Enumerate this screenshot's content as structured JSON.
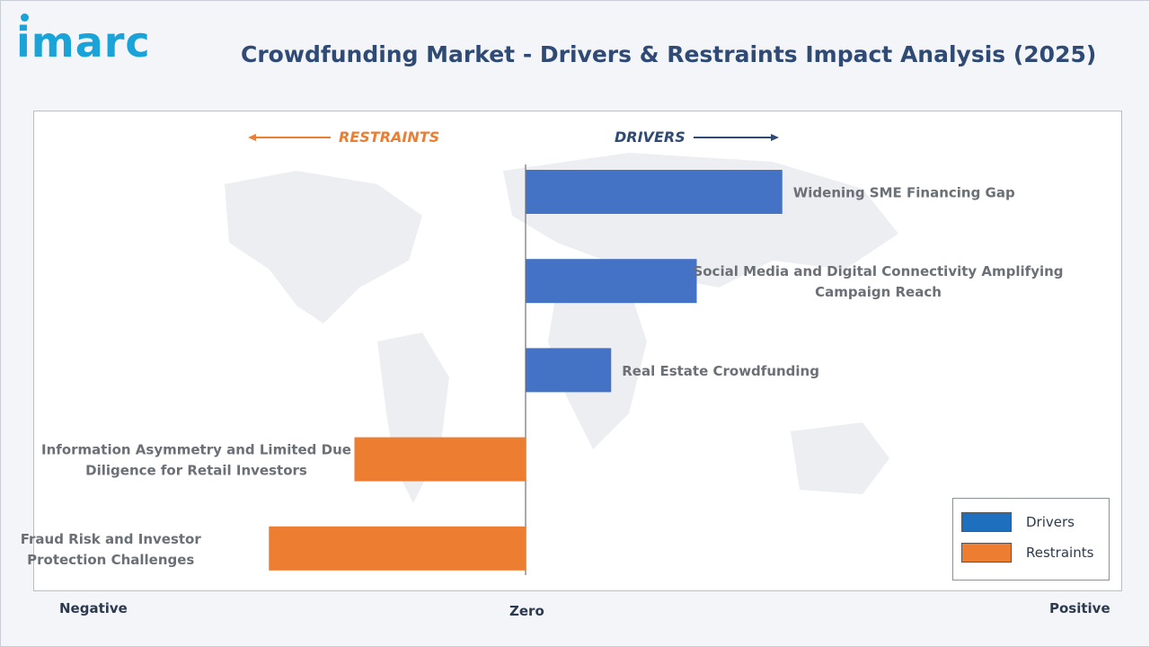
{
  "header": {
    "logo_text": "imarc",
    "title": "Crowdfunding Market - Drivers & Restraints Impact Analysis (2025)"
  },
  "chart_data": {
    "type": "bar",
    "orientation": "horizontal-diverging",
    "direction_labels": {
      "left": "RESTRAINTS",
      "right": "DRIVERS"
    },
    "axis_labels": {
      "negative": "Negative",
      "zero": "Zero",
      "positive": "Positive"
    },
    "xlim": [
      -100,
      100
    ],
    "categories": [
      "Widening SME Financing Gap",
      "Social Media and Digital Connectivity Amplifying Campaign Reach",
      "Real Estate Crowdfunding",
      "Information Asymmetry and Limited Due Diligence for Retail Investors",
      "Fraud Risk and Investor Protection Challenges"
    ],
    "series": [
      {
        "name": "Drivers",
        "color": "#4472c4",
        "values": [
          45,
          30,
          15,
          0,
          0
        ]
      },
      {
        "name": "Restraints",
        "color": "#ed7d31",
        "values": [
          0,
          0,
          0,
          -30,
          -45
        ]
      }
    ],
    "legend": {
      "placement": "bottom-right",
      "items": [
        {
          "label": "Drivers",
          "color": "#1f6fbf"
        },
        {
          "label": "Restraints",
          "color": "#ed7d31"
        }
      ]
    },
    "label_lines": [
      [
        "Widening SME Financing Gap"
      ],
      [
        "Social Media and Digital Connectivity Amplifying",
        "Campaign Reach"
      ],
      [
        "Real Estate Crowdfunding"
      ],
      [
        "Information Asymmetry and Limited Due",
        "Diligence for Retail Investors"
      ],
      [
        "Fraud Risk and Investor",
        "Protection Challenges"
      ]
    ]
  },
  "colors": {
    "restraints_arrow": "#ed7d31",
    "drivers_arrow": "#2f4a74",
    "label_text": "#6b6f76"
  }
}
